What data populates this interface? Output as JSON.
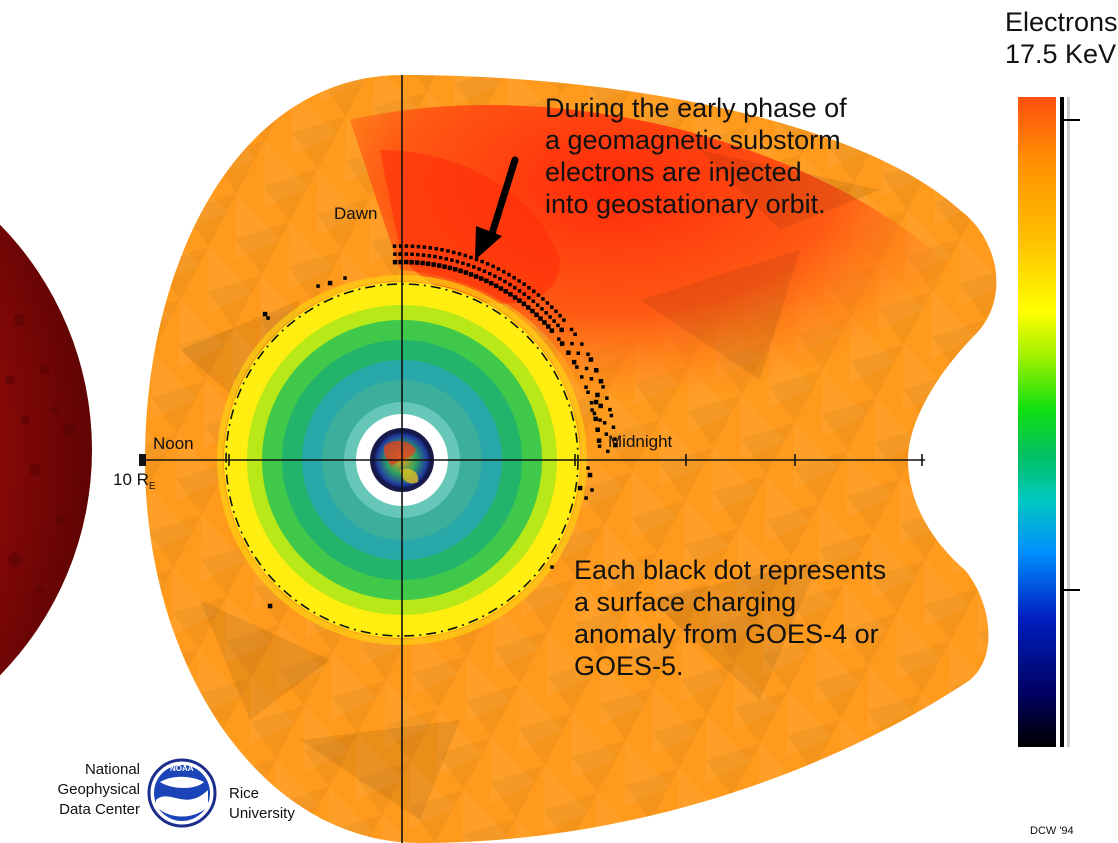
{
  "colorbar": {
    "title_line1": "Electrons",
    "title_line2": "17.5 KeV",
    "stops": [
      "#000000",
      "#000060",
      "#0020c0",
      "#0090ff",
      "#00c8c0",
      "#00c060",
      "#10e010",
      "#a0f000",
      "#ffff00",
      "#ffc000",
      "#ff9000",
      "#ff5010"
    ]
  },
  "labels": {
    "dawn": "Dawn",
    "noon": "Noon",
    "midnight": "Midnight",
    "scale_num": "10 R",
    "scale_sub": "E"
  },
  "annotations": {
    "top": [
      "During the early phase of",
      "a geomagnetic substorm",
      "electrons are injected",
      "into geostationary orbit."
    ],
    "bottom": [
      "Each black dot represents",
      "a surface charging",
      "anomaly from GOES-4 or",
      "GOES-5."
    ]
  },
  "credits": {
    "ngdc": [
      "National",
      "Geophysical",
      "Data Center"
    ],
    "noaa_logo_text": "NOAA",
    "rice": [
      "Rice",
      "University"
    ],
    "signature": "DCW '94"
  },
  "colors": {
    "outer": "#ff9a1c",
    "tail": "#ff5a14",
    "yellow": "#ffee10",
    "green": "#22b46a",
    "teal": "#28a8a8",
    "sun": "#b8100c"
  }
}
